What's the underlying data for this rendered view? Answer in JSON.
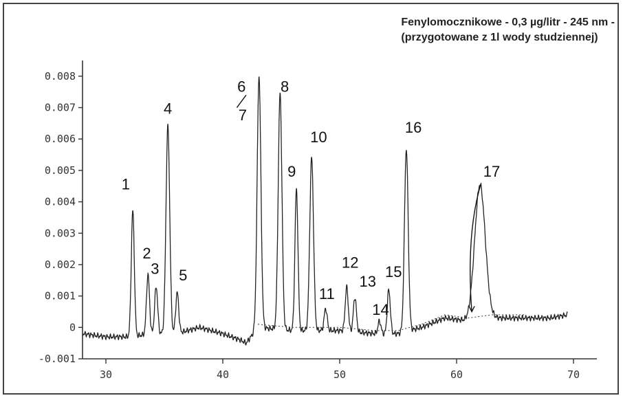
{
  "chart_data": {
    "type": "line",
    "title_lines": [
      "Fenylomocznikowe - 0,3 µg/litr - 245 nm -",
      "(przygotowane z 1l wody studziennej)"
    ],
    "xlim": [
      28,
      72
    ],
    "ylim": [
      -0.001,
      0.0085
    ],
    "x_ticks": [
      30,
      40,
      50,
      60,
      70
    ],
    "x_tick_labels": [
      "30",
      "40",
      "50",
      "60",
      "70"
    ],
    "y_ticks": [
      -0.001,
      0,
      0.001,
      0.002,
      0.003,
      0.004,
      0.005,
      0.006,
      0.007,
      0.008
    ],
    "y_tick_labels": [
      "-0.001",
      "0",
      "0.001",
      "0.002",
      "0.003",
      "0.004",
      "0.005",
      "0.006",
      "0.007",
      "0.008"
    ],
    "grid": false,
    "series": [
      {
        "baseline": [
          [
            28,
            -0.0002
          ],
          [
            30,
            -0.0003
          ],
          [
            32,
            -0.0003
          ],
          [
            34,
            -0.0002
          ],
          [
            36,
            -0.0002
          ],
          [
            38,
            0.0
          ],
          [
            40,
            -0.0002
          ],
          [
            41.5,
            -0.0004
          ],
          [
            42,
            -0.0005
          ],
          [
            43,
            0.0
          ],
          [
            46,
            -0.0001
          ],
          [
            50,
            -0.0001
          ],
          [
            53,
            -0.0002
          ],
          [
            55,
            -0.0002
          ],
          [
            57,
            0.0
          ],
          [
            59,
            0.0003
          ],
          [
            61,
            0.0002
          ],
          [
            63,
            0.0003
          ],
          [
            66,
            0.0003
          ],
          [
            68,
            0.0003
          ],
          [
            69.5,
            0.0004
          ]
        ],
        "peaks": [
          {
            "label": "1",
            "x": 32.3,
            "height": 0.004
          },
          {
            "label": "2",
            "x": 33.6,
            "height": 0.0019
          },
          {
            "label": "3",
            "x": 34.3,
            "height": 0.0015
          },
          {
            "label": "4",
            "x": 35.3,
            "height": 0.0066
          },
          {
            "label": "5",
            "x": 36.1,
            "height": 0.0013
          },
          {
            "label": "6/7",
            "x": 43.1,
            "height": 0.008
          },
          {
            "label": "8",
            "x": 44.9,
            "height": 0.0075
          },
          {
            "label": "9",
            "x": 46.3,
            "height": 0.0045
          },
          {
            "label": "10",
            "x": 47.6,
            "height": 0.0055
          },
          {
            "label": "11",
            "x": 48.8,
            "height": 0.0007
          },
          {
            "label": "12",
            "x": 50.6,
            "height": 0.0014
          },
          {
            "label": "13",
            "x": 51.3,
            "height": 0.0011
          },
          {
            "label": "14",
            "x": 53.4,
            "height": 0.0004
          },
          {
            "label": "15",
            "x": 54.2,
            "height": 0.0014
          },
          {
            "label": "16",
            "x": 55.7,
            "height": 0.0058
          },
          {
            "label": "17",
            "x": 62.0,
            "height": 0.0043
          }
        ]
      }
    ]
  },
  "peak_labels": [
    {
      "text": "1",
      "x": 31.7,
      "y": 0.0044
    },
    {
      "text": "2",
      "x": 33.5,
      "height_note": "",
      "y": 0.0022
    },
    {
      "text": "3",
      "x": 34.2,
      "y": 0.0017
    },
    {
      "text": "4",
      "x": 35.3,
      "y": 0.0068
    },
    {
      "text": "5",
      "x": 36.6,
      "y": 0.0015
    },
    {
      "text": "6",
      "x": 41.6,
      "y": 0.0075
    },
    {
      "text": "7",
      "x": 41.7,
      "y": 0.0066
    },
    {
      "text": "8",
      "x": 45.3,
      "y": 0.0075
    },
    {
      "text": "9",
      "x": 45.9,
      "y": 0.0048
    },
    {
      "text": "10",
      "x": 48.2,
      "y": 0.0059
    },
    {
      "text": "11",
      "x": 48.9,
      "y": 0.0009
    },
    {
      "text": "12",
      "x": 50.9,
      "y": 0.0019
    },
    {
      "text": "13",
      "x": 52.4,
      "y": 0.0013
    },
    {
      "text": "14",
      "x": 53.5,
      "y": 0.0004
    },
    {
      "text": "15",
      "x": 54.6,
      "y": 0.0016
    },
    {
      "text": "16",
      "x": 56.3,
      "y": 0.0062
    },
    {
      "text": "17",
      "x": 63.0,
      "y": 0.0048
    }
  ]
}
